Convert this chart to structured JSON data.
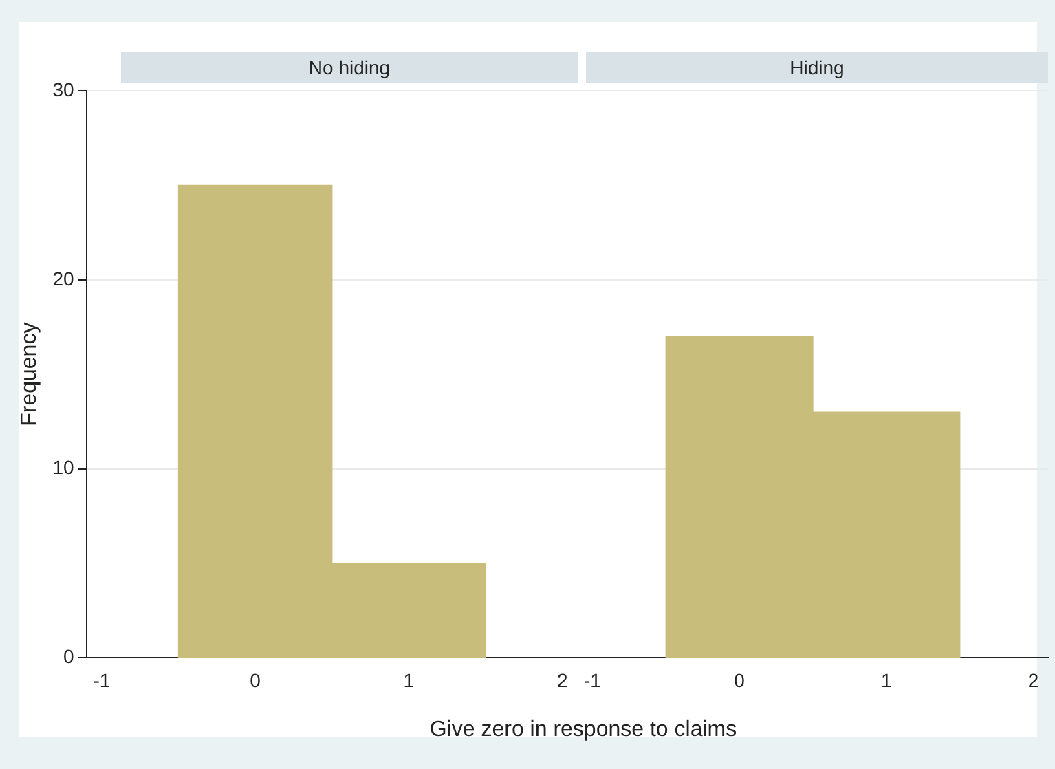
{
  "chart_data": [
    {
      "type": "histogram",
      "title": "No hiding",
      "xlabel": "Give zero in response to claims",
      "ylabel": "Frequency",
      "bins": [
        -0.5,
        0.5,
        1.5
      ],
      "values": [
        25,
        5
      ],
      "color": "#c9bd7c",
      "xlim": [
        -1.1,
        2.1
      ],
      "xticks": [
        -1,
        0,
        1,
        2
      ],
      "ylim": [
        0,
        30
      ],
      "yticks": [
        0,
        10,
        20,
        30
      ],
      "grid": "y"
    },
    {
      "type": "histogram",
      "title": "Hiding",
      "bins": [
        -0.5,
        0.5,
        1.5
      ],
      "values": [
        17,
        13
      ],
      "color": "#c9bd7c",
      "xlim": [
        -1.1,
        2.1
      ],
      "xticks": [
        -1,
        0,
        1,
        2
      ],
      "ylim": [
        0,
        30
      ],
      "yticks": [
        0,
        10,
        20,
        30
      ],
      "grid": "y",
      "tick_labels": "x"
    }
  ]
}
